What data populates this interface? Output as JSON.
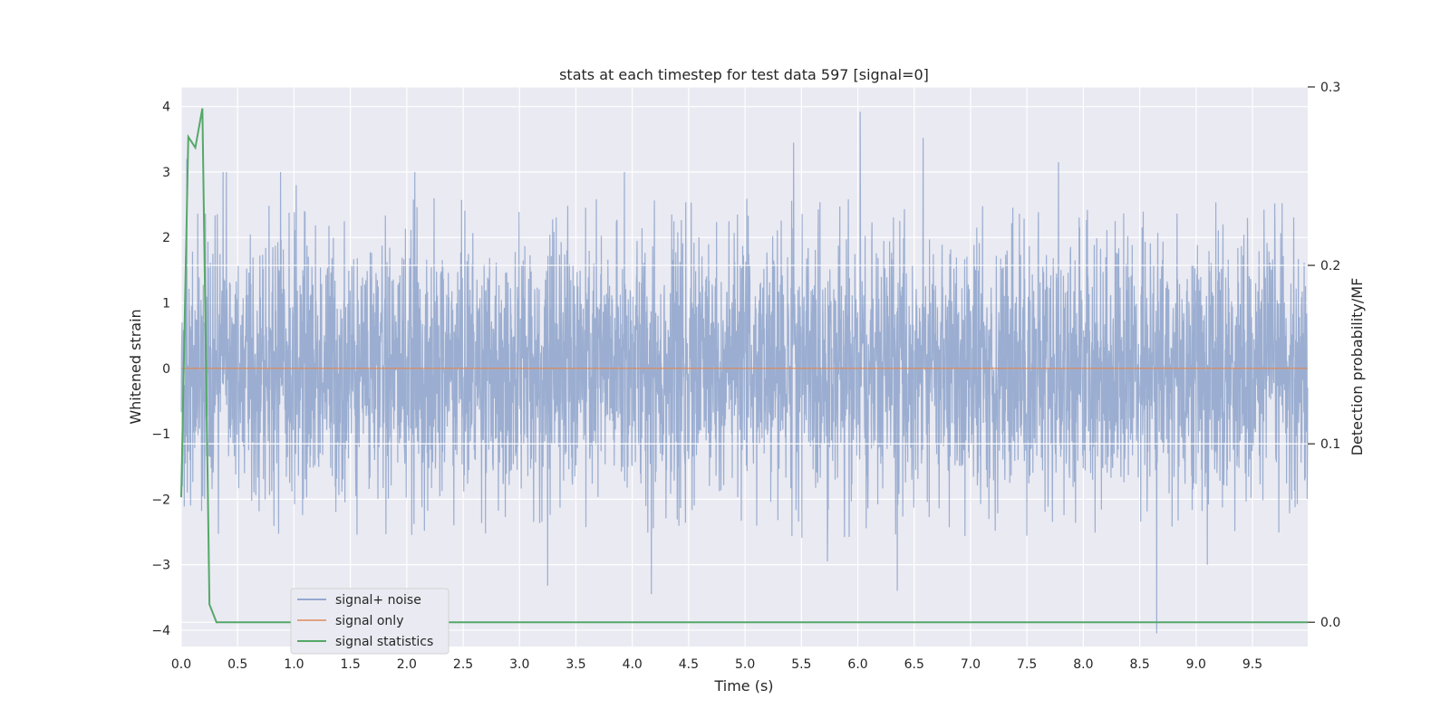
{
  "chart_data": {
    "type": "line",
    "title": "stats at each timestep for test data 597 [signal=0]",
    "xlabel": "Time (s)",
    "ylabel": "Whitened strain",
    "y2label": "Detection probability/MF",
    "xlim": [
      0.0,
      9.99
    ],
    "ylim": [
      -4.25,
      4.3
    ],
    "y2lim": [
      -0.0136,
      0.3
    ],
    "xticks": [
      "0.0",
      "0.5",
      "1.0",
      "1.5",
      "2.0",
      "2.5",
      "3.0",
      "3.5",
      "4.0",
      "4.5",
      "5.0",
      "5.5",
      "6.0",
      "6.5",
      "7.0",
      "7.5",
      "8.0",
      "8.5",
      "9.0",
      "9.5"
    ],
    "yticks": [
      "4",
      "3",
      "2",
      "1",
      "0",
      "−1",
      "−2",
      "−3",
      "−4"
    ],
    "y2ticks": [
      "0.3",
      "0.2",
      "0.1",
      "0.0"
    ],
    "grid": true,
    "legend_position": "lower-left",
    "series": [
      {
        "name": "signal+ noise",
        "axis": "left",
        "color": "#4c72b0",
        "description_samples": 4096,
        "typical_envelope": [
          -2.6,
          2.6
        ],
        "peaks": [
          {
            "x": 0.05,
            "y": 3.2
          },
          {
            "x": 0.37,
            "y": 3.0
          },
          {
            "x": 0.4,
            "y": 3.0
          },
          {
            "x": 0.88,
            "y": 3.0
          },
          {
            "x": 1.02,
            "y": 2.8
          },
          {
            "x": 2.07,
            "y": 3.0
          },
          {
            "x": 3.93,
            "y": 3.0
          },
          {
            "x": 5.43,
            "y": 3.45
          },
          {
            "x": 6.02,
            "y": 3.92
          },
          {
            "x": 6.58,
            "y": 3.52
          },
          {
            "x": 7.78,
            "y": 3.15
          },
          {
            "x": 3.25,
            "y": -3.32
          },
          {
            "x": 4.17,
            "y": -3.45
          },
          {
            "x": 6.35,
            "y": -3.4
          },
          {
            "x": 8.65,
            "y": -4.05
          },
          {
            "x": 9.1,
            "y": -3.0
          },
          {
            "x": 5.73,
            "y": -2.95
          }
        ]
      },
      {
        "name": "signal only",
        "axis": "left",
        "color": "#dd8452",
        "x": [
          0.0,
          9.99
        ],
        "y": [
          0.0,
          0.0
        ]
      },
      {
        "name": "signal statistics",
        "axis": "right",
        "color": "#55a868",
        "x": [
          0.0,
          0.0625,
          0.125,
          0.1875,
          0.25,
          0.3125,
          0.375,
          9.99
        ],
        "y": [
          0.07,
          0.272,
          0.266,
          0.288,
          0.01,
          0.0,
          0.0,
          0.0
        ]
      }
    ]
  }
}
